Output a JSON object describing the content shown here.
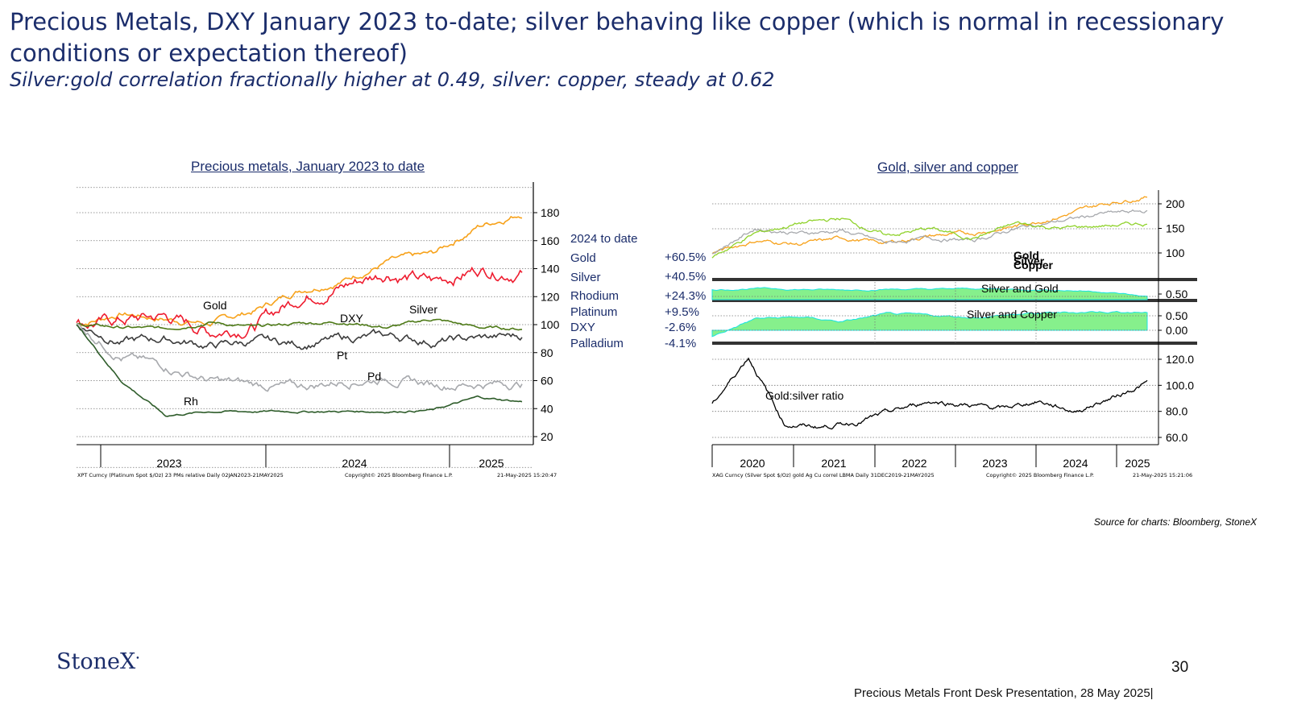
{
  "slide": {
    "title": "Precious Metals, DXY January 2023 to-date; silver behaving like copper (which is normal in recessionary conditions or expectation thereof)",
    "subtitle": "Silver:gold correlation fractionally higher at 0.49, silver: copper, steady at 0.62",
    "source": "Source for charts: Bloomberg, StoneX",
    "logo": "StoneX",
    "page_number": "30",
    "footer": "Precious Metals Front Desk Presentation, 28 May 2025|"
  },
  "colors": {
    "gold": "#f7a21b",
    "silver": "#ee1c2f",
    "dxy": "#4e7a18",
    "pt": "#3c3c3c",
    "pd": "#a7a9ad",
    "rh": "#2e5c2a",
    "copper": "#8fd22b",
    "corr_fill": "#86f08c",
    "corr_line": "#19e3e3",
    "title_blue": "#1b2d6b"
  },
  "chart_data": [
    {
      "type": "line",
      "title": "Precious metals, January 2023 to date",
      "x": [
        "2023-01",
        "2023-04",
        "2023-07",
        "2023-10",
        "2024-01",
        "2024-04",
        "2024-07",
        "2024-10",
        "2025-01",
        "2025-03",
        "2025-05"
      ],
      "x_ticks": [
        "2023",
        "2024",
        "2025"
      ],
      "y_ticks": [
        "20",
        "40",
        "60",
        "80",
        "100",
        "120",
        "140",
        "160",
        "180"
      ],
      "ylim": [
        18,
        198
      ],
      "series": [
        {
          "name": "Gold",
          "values": [
            100,
            108,
            104,
            101,
            110,
            125,
            132,
            145,
            150,
            170,
            180
          ]
        },
        {
          "name": "Silver",
          "values": [
            100,
            103,
            106,
            95,
            100,
            120,
            128,
            138,
            130,
            140,
            138
          ]
        },
        {
          "name": "DXY",
          "values": [
            100,
            98,
            97,
            102,
            98,
            101,
            102,
            98,
            104,
            98,
            97
          ]
        },
        {
          "name": "Pt",
          "values": [
            100,
            88,
            90,
            85,
            88,
            86,
            90,
            92,
            88,
            90,
            92
          ]
        },
        {
          "name": "Pd",
          "values": [
            100,
            78,
            70,
            60,
            57,
            55,
            60,
            62,
            57,
            58,
            58
          ]
        },
        {
          "name": "Rh",
          "values": [
            100,
            60,
            35,
            38,
            38,
            38,
            38,
            38,
            39,
            48,
            45
          ]
        }
      ],
      "legend": {
        "heading": "2024 to date",
        "entries": [
          {
            "name": "Gold",
            "change": "+60.5%"
          },
          {
            "name": "Silver",
            "change": "+40.5%"
          },
          {
            "name": "Rhodium",
            "change": "+24.3%"
          },
          {
            "name": "Platinum",
            "change": "+9.5%"
          },
          {
            "name": "DXY",
            "change": "-2.6%"
          },
          {
            "name": "Palladium",
            "change": "-4.1%"
          }
        ]
      },
      "footnote_left": "XPT Curncy (Platinum Spot $/Oz) 23 PMs relative  Daily 02JAN2023-21MAY2025",
      "footnote_mid": "Copyright© 2025 Bloomberg Finance L.P.",
      "footnote_right": "21-May-2025 15:20:47"
    },
    {
      "type": "line",
      "title": "Gold, silver and copper",
      "x_ticks": [
        "2020",
        "2021",
        "2022",
        "2023",
        "2024",
        "2025"
      ],
      "panels": [
        {
          "name": "prices",
          "y_ticks": [
            "100",
            "150",
            "200"
          ],
          "series": [
            {
              "name": "Gold",
              "values": [
                100,
                125,
                118,
                130,
                120,
                135,
                140,
                155,
                175,
                200,
                215
              ]
            },
            {
              "name": "Silver",
              "values": [
                100,
                150,
                140,
                145,
                120,
                130,
                125,
                150,
                165,
                180,
                185
              ]
            },
            {
              "name": "Copper",
              "values": [
                92,
                140,
                160,
                170,
                135,
                150,
                130,
                160,
                150,
                155,
                160
              ]
            }
          ]
        },
        {
          "name": "Silver and Gold",
          "y_ticks": [
            "0.50"
          ],
          "values": [
            0.7,
            0.75,
            0.72,
            0.7,
            0.73,
            0.72,
            0.74,
            0.72,
            0.7,
            0.65,
            0.49
          ]
        },
        {
          "name": "Silver and Copper",
          "y_ticks": [
            "0.50",
            "0.00"
          ],
          "values": [
            -0.2,
            0.4,
            0.45,
            0.3,
            0.55,
            0.5,
            0.45,
            0.55,
            0.6,
            0.65,
            0.62
          ]
        },
        {
          "name": "Gold:silver ratio",
          "y_ticks": [
            "60.0",
            "80.0",
            "100.0",
            "120.0"
          ],
          "values": [
            85,
            122,
            70,
            68,
            72,
            80,
            88,
            85,
            82,
            88,
            80,
            90,
            102
          ]
        }
      ],
      "footnote_left": "XAG Curncy (Silver Spot $/Oz) gold Ag Cu correl LBMA  Daily 31DEC2019-21MAY2025",
      "footnote_mid": "Copyright© 2025 Bloomberg Finance L.P.",
      "footnote_right": "21-May-2025 15:21:06"
    }
  ]
}
